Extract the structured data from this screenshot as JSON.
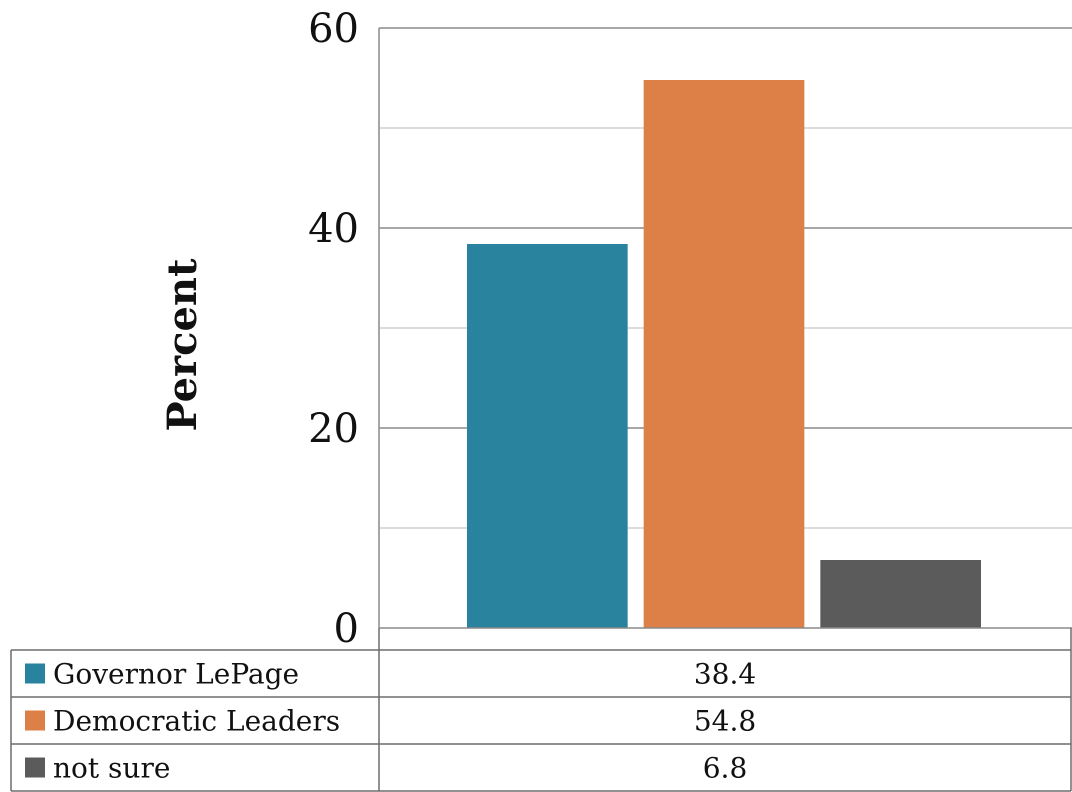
{
  "chart_data": {
    "type": "bar",
    "title": "",
    "xlabel": "",
    "ylabel": "Percent",
    "ylim": [
      0,
      60
    ],
    "major_ticks": [
      0,
      20,
      40,
      60
    ],
    "minor_gridlines": [
      10,
      30,
      50
    ],
    "grid": true,
    "legend": "data-table-below",
    "series": [
      {
        "name": "Governor LePage",
        "values": [
          38.4
        ],
        "label": "38.4",
        "color": "#2a839e"
      },
      {
        "name": "Democratic Leaders",
        "values": [
          54.8
        ],
        "label": "54.8",
        "color": "#dd8047"
      },
      {
        "name": "not sure",
        "values": [
          6.8
        ],
        "label": "6.8",
        "color": "#5b5b5b"
      }
    ]
  }
}
